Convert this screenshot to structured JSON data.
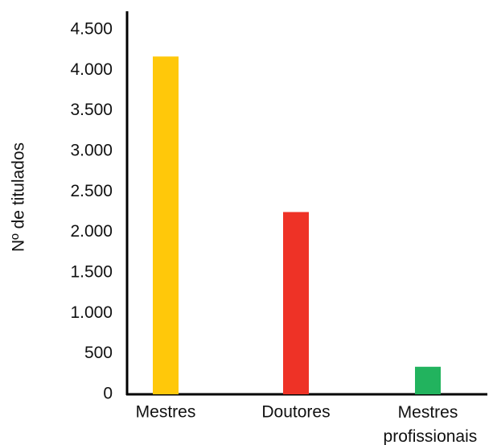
{
  "chart_data": {
    "type": "bar",
    "y_axis_label": "Nº de titulados",
    "categories": [
      "Mestres",
      "Doutores",
      "Mestres profissionais"
    ],
    "values": [
      4170,
      2250,
      340
    ],
    "colors": [
      "#ffc80a",
      "#ee3226",
      "#22b35e"
    ],
    "ylim": [
      0,
      4500
    ],
    "yticks": [
      0,
      500,
      {
        "value": 1000,
        "label": "1.000"
      },
      {
        "value": 1500,
        "label": "1.500"
      },
      {
        "value": 2000,
        "label": "2.000"
      },
      {
        "value": 2500,
        "label": "2.500"
      },
      {
        "value": 3000,
        "label": "3.000"
      },
      {
        "value": 3500,
        "label": "3.500"
      },
      {
        "value": 4000,
        "label": "4.000"
      },
      {
        "value": 4500,
        "label": "4.500"
      }
    ],
    "grid": false
  }
}
